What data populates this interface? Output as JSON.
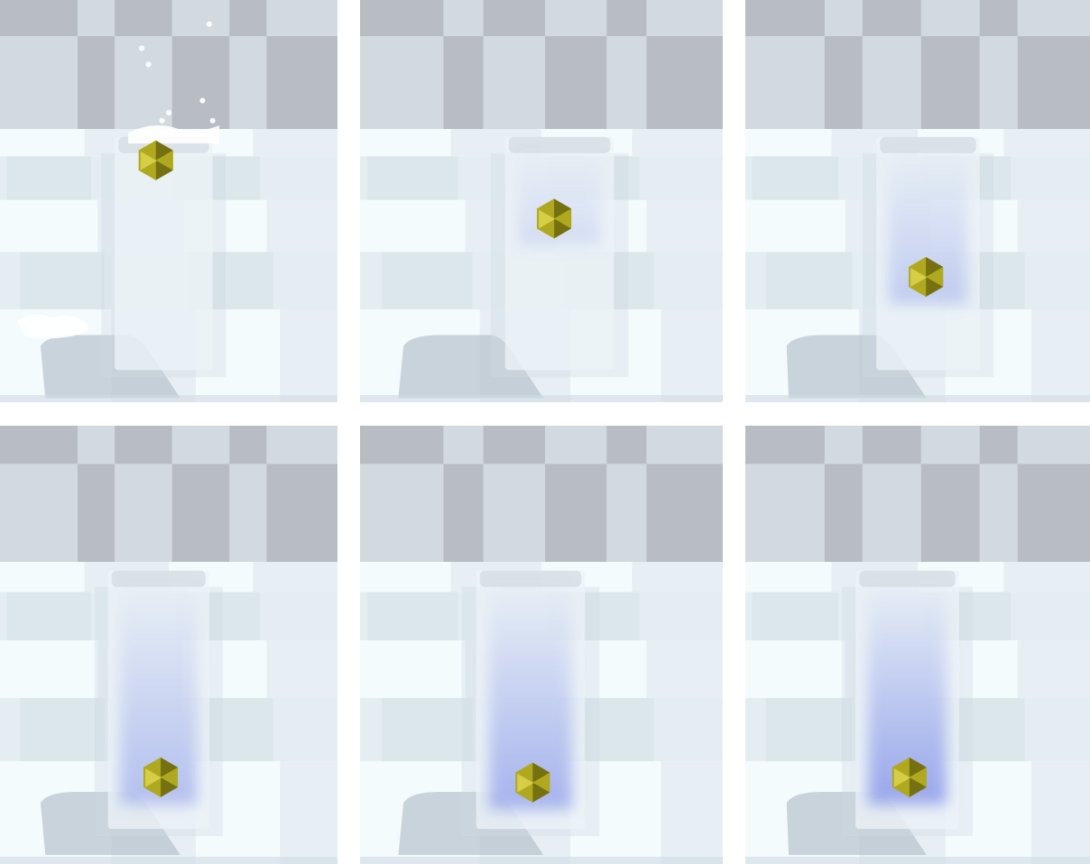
{
  "figure": {
    "description_text": "",
    "layout": {
      "rows": 2,
      "columns": 3
    },
    "colors": {
      "background": "#ffffff",
      "wall_light": "#d3dadf",
      "wall_dark": "#b7bdc2",
      "floor_light": "#f4fbfd",
      "floor_mid": "#e2ecf1",
      "floor_dark": "#cfdbe2",
      "shadow": "#b6c2cc",
      "tank_glass": "#eef4f8",
      "dye": "#7f8fe8",
      "object": "#b0a820",
      "object_dark": "#6f6a10",
      "object_light": "#d9d24a",
      "splash": "#ffffff"
    },
    "frames": [
      {
        "index": 1,
        "dye_intensity": 0.0,
        "object_depth": 0.1,
        "splash": true
      },
      {
        "index": 2,
        "dye_intensity": 0.25,
        "object_depth": 0.35,
        "splash": false
      },
      {
        "index": 3,
        "dye_intensity": 0.45,
        "object_depth": 0.6,
        "splash": false
      },
      {
        "index": 4,
        "dye_intensity": 0.6,
        "object_depth": 0.8,
        "splash": false
      },
      {
        "index": 5,
        "dye_intensity": 0.75,
        "object_depth": 0.82,
        "splash": false
      },
      {
        "index": 6,
        "dye_intensity": 0.9,
        "object_depth": 0.8,
        "splash": false
      }
    ]
  }
}
